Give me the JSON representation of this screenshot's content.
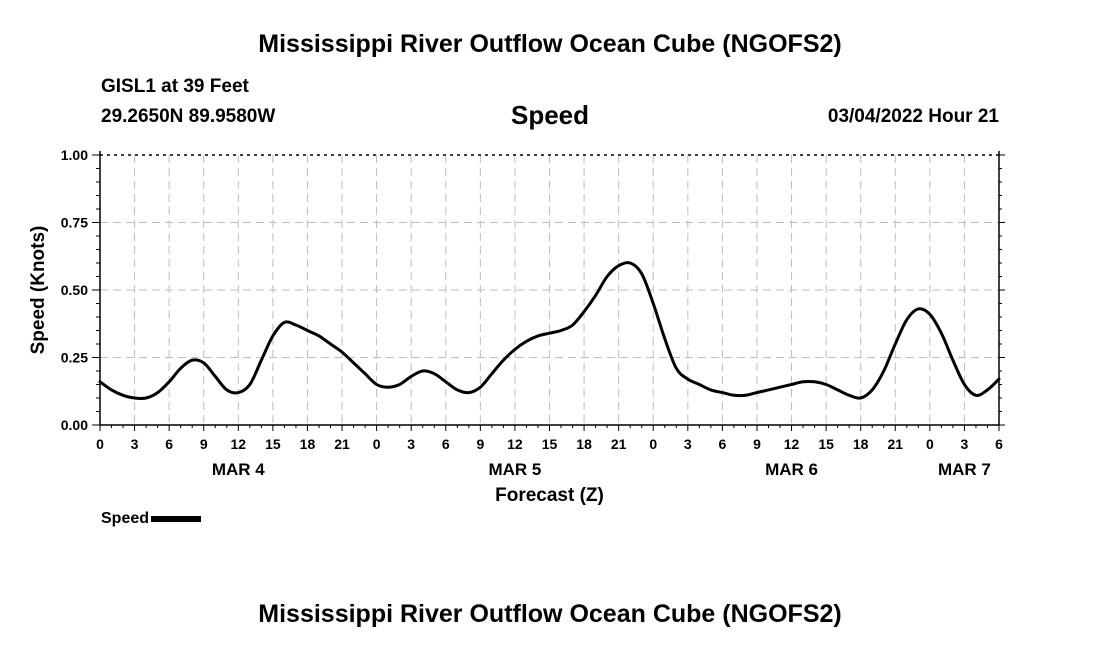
{
  "header": {
    "title": "Mississippi River Outflow Ocean Cube (NGOFS2)",
    "station": "GISL1 at 39 Feet",
    "coords": "29.2650N  89.9580W",
    "plot_title": "Speed",
    "datetime": "03/04/2022 Hour 21"
  },
  "footer": {
    "title": "Mississippi River Outflow Ocean Cube (NGOFS2)"
  },
  "chart_data": {
    "type": "line",
    "title": "Speed",
    "xlabel": "Forecast (Z)",
    "ylabel": "Speed (Knots)",
    "x_unit": "hours since MAR 4 00Z",
    "xlim": [
      0,
      78
    ],
    "ylim": [
      0,
      1.0
    ],
    "yticks": [
      0.0,
      0.25,
      0.5,
      0.75,
      1.0
    ],
    "ytick_labels": [
      "0.00",
      "0.25",
      "0.50",
      "0.75",
      "1.00"
    ],
    "xtick_labels": [
      "0",
      "3",
      "6",
      "9",
      "12",
      "15",
      "18",
      "21",
      "0",
      "3",
      "6",
      "9",
      "12",
      "15",
      "18",
      "21",
      "0",
      "3",
      "6",
      "9",
      "12",
      "15",
      "18",
      "21",
      "0",
      "3",
      "6"
    ],
    "date_labels": [
      {
        "label": "MAR 4",
        "hour": 12
      },
      {
        "label": "MAR 5",
        "hour": 36
      },
      {
        "label": "MAR 6",
        "hour": 60
      },
      {
        "label": "MAR 7",
        "hour": 75
      }
    ],
    "grid": true,
    "legend": "bottom-left",
    "series": [
      {
        "name": "Speed",
        "x": [
          0,
          1,
          2,
          3,
          4,
          5,
          6,
          7,
          8,
          9,
          10,
          11,
          12,
          13,
          14,
          15,
          16,
          17,
          18,
          19,
          20,
          21,
          22,
          23,
          24,
          25,
          26,
          27,
          28,
          29,
          30,
          31,
          32,
          33,
          34,
          35,
          36,
          37,
          38,
          39,
          40,
          41,
          42,
          43,
          44,
          45,
          46,
          47,
          48,
          49,
          50,
          51,
          52,
          53,
          54,
          55,
          56,
          57,
          58,
          59,
          60,
          61,
          62,
          63,
          64,
          65,
          66,
          67,
          68,
          69,
          70,
          71,
          72,
          73,
          74,
          75,
          76,
          77,
          78
        ],
        "values": [
          0.16,
          0.13,
          0.11,
          0.1,
          0.1,
          0.12,
          0.16,
          0.21,
          0.24,
          0.23,
          0.18,
          0.13,
          0.12,
          0.15,
          0.24,
          0.33,
          0.38,
          0.37,
          0.35,
          0.33,
          0.3,
          0.27,
          0.23,
          0.19,
          0.15,
          0.14,
          0.15,
          0.18,
          0.2,
          0.19,
          0.16,
          0.13,
          0.12,
          0.14,
          0.19,
          0.24,
          0.28,
          0.31,
          0.33,
          0.34,
          0.35,
          0.37,
          0.42,
          0.48,
          0.55,
          0.59,
          0.6,
          0.56,
          0.45,
          0.32,
          0.21,
          0.17,
          0.15,
          0.13,
          0.12,
          0.11,
          0.11,
          0.12,
          0.13,
          0.14,
          0.15,
          0.16,
          0.16,
          0.15,
          0.13,
          0.11,
          0.1,
          0.13,
          0.2,
          0.3,
          0.39,
          0.43,
          0.41,
          0.34,
          0.24,
          0.15,
          0.11,
          0.13,
          0.17
        ]
      }
    ],
    "legend_label": "Speed"
  }
}
